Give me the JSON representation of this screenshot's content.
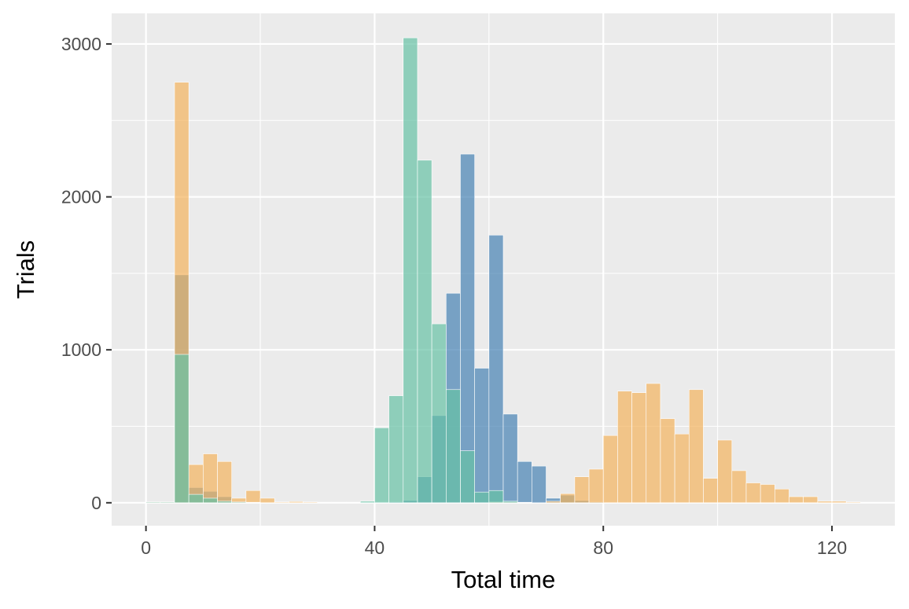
{
  "chart_data": {
    "type": "bar",
    "subtype": "overlapping histogram",
    "title": "",
    "xlabel": "Total time",
    "ylabel": "Trials",
    "xlim": [
      -6,
      131
    ],
    "ylim": [
      -150,
      3200
    ],
    "x_ticks": [
      0,
      40,
      80,
      120
    ],
    "y_ticks": [
      0,
      1000,
      2000,
      3000
    ],
    "x_tick_labels": [
      "0",
      "40",
      "80",
      "120"
    ],
    "y_tick_labels": [
      "0",
      "1000",
      "2000",
      "3000"
    ],
    "bin_width": 2.5,
    "grid": true,
    "legend": "none",
    "background_color": "#ebebeb",
    "opacity": 0.7,
    "series": [
      {
        "color": "#4682b4",
        "bins": [
          {
            "x": 1.25,
            "y": 5
          },
          {
            "x": 3.75,
            "y": 5
          },
          {
            "x": 6.25,
            "y": 1490
          },
          {
            "x": 8.75,
            "y": 100
          },
          {
            "x": 11.25,
            "y": 75
          },
          {
            "x": 13.75,
            "y": 40
          },
          {
            "x": 16.25,
            "y": 10
          },
          {
            "x": 18.75,
            "y": 5
          },
          {
            "x": 21.25,
            "y": 2
          },
          {
            "x": 41.25,
            "y": 2
          },
          {
            "x": 43.75,
            "y": 5
          },
          {
            "x": 46.25,
            "y": 15
          },
          {
            "x": 48.75,
            "y": 170
          },
          {
            "x": 51.25,
            "y": 570
          },
          {
            "x": 53.75,
            "y": 1370
          },
          {
            "x": 56.25,
            "y": 2280
          },
          {
            "x": 58.75,
            "y": 880
          },
          {
            "x": 61.25,
            "y": 1750
          },
          {
            "x": 63.75,
            "y": 580
          },
          {
            "x": 66.25,
            "y": 270
          },
          {
            "x": 68.75,
            "y": 240
          },
          {
            "x": 71.25,
            "y": 30
          },
          {
            "x": 73.75,
            "y": 50
          },
          {
            "x": 76.25,
            "y": 15
          },
          {
            "x": 78.75,
            "y": 5
          }
        ]
      },
      {
        "color": "#f4b35e",
        "bins": [
          {
            "x": 1.25,
            "y": 5
          },
          {
            "x": 3.75,
            "y": 5
          },
          {
            "x": 6.25,
            "y": 2750
          },
          {
            "x": 8.75,
            "y": 250
          },
          {
            "x": 11.25,
            "y": 320
          },
          {
            "x": 13.75,
            "y": 270
          },
          {
            "x": 16.25,
            "y": 30
          },
          {
            "x": 18.75,
            "y": 80
          },
          {
            "x": 21.25,
            "y": 30
          },
          {
            "x": 23.75,
            "y": 5
          },
          {
            "x": 26.25,
            "y": 8
          },
          {
            "x": 28.75,
            "y": 5
          },
          {
            "x": 31.25,
            "y": 3
          },
          {
            "x": 33.75,
            "y": 3
          },
          {
            "x": 61.25,
            "y": 5
          },
          {
            "x": 63.75,
            "y": 5
          },
          {
            "x": 71.25,
            "y": 10
          },
          {
            "x": 73.75,
            "y": 60
          },
          {
            "x": 76.25,
            "y": 170
          },
          {
            "x": 78.75,
            "y": 220
          },
          {
            "x": 81.25,
            "y": 440
          },
          {
            "x": 83.75,
            "y": 730
          },
          {
            "x": 86.25,
            "y": 720
          },
          {
            "x": 88.75,
            "y": 780
          },
          {
            "x": 91.25,
            "y": 550
          },
          {
            "x": 93.75,
            "y": 450
          },
          {
            "x": 96.25,
            "y": 740
          },
          {
            "x": 98.75,
            "y": 160
          },
          {
            "x": 101.25,
            "y": 410
          },
          {
            "x": 103.75,
            "y": 210
          },
          {
            "x": 106.25,
            "y": 130
          },
          {
            "x": 108.75,
            "y": 120
          },
          {
            "x": 111.25,
            "y": 90
          },
          {
            "x": 113.75,
            "y": 40
          },
          {
            "x": 116.25,
            "y": 40
          },
          {
            "x": 118.75,
            "y": 10
          },
          {
            "x": 121.25,
            "y": 10
          },
          {
            "x": 123.75,
            "y": 5
          }
        ]
      },
      {
        "color": "#66c2a5",
        "bins": [
          {
            "x": 1.25,
            "y": 5
          },
          {
            "x": 3.75,
            "y": 5
          },
          {
            "x": 6.25,
            "y": 970
          },
          {
            "x": 8.75,
            "y": 55
          },
          {
            "x": 11.25,
            "y": 30
          },
          {
            "x": 13.75,
            "y": 10
          },
          {
            "x": 16.25,
            "y": 5
          },
          {
            "x": 18.75,
            "y": 3
          },
          {
            "x": 36.25,
            "y": 3
          },
          {
            "x": 38.75,
            "y": 10
          },
          {
            "x": 41.25,
            "y": 490
          },
          {
            "x": 43.75,
            "y": 700
          },
          {
            "x": 46.25,
            "y": 3040
          },
          {
            "x": 48.75,
            "y": 2240
          },
          {
            "x": 51.25,
            "y": 1170
          },
          {
            "x": 53.75,
            "y": 740
          },
          {
            "x": 56.25,
            "y": 340
          },
          {
            "x": 58.75,
            "y": 70
          },
          {
            "x": 61.25,
            "y": 80
          },
          {
            "x": 63.75,
            "y": 10
          },
          {
            "x": 66.25,
            "y": 3
          }
        ]
      }
    ]
  }
}
